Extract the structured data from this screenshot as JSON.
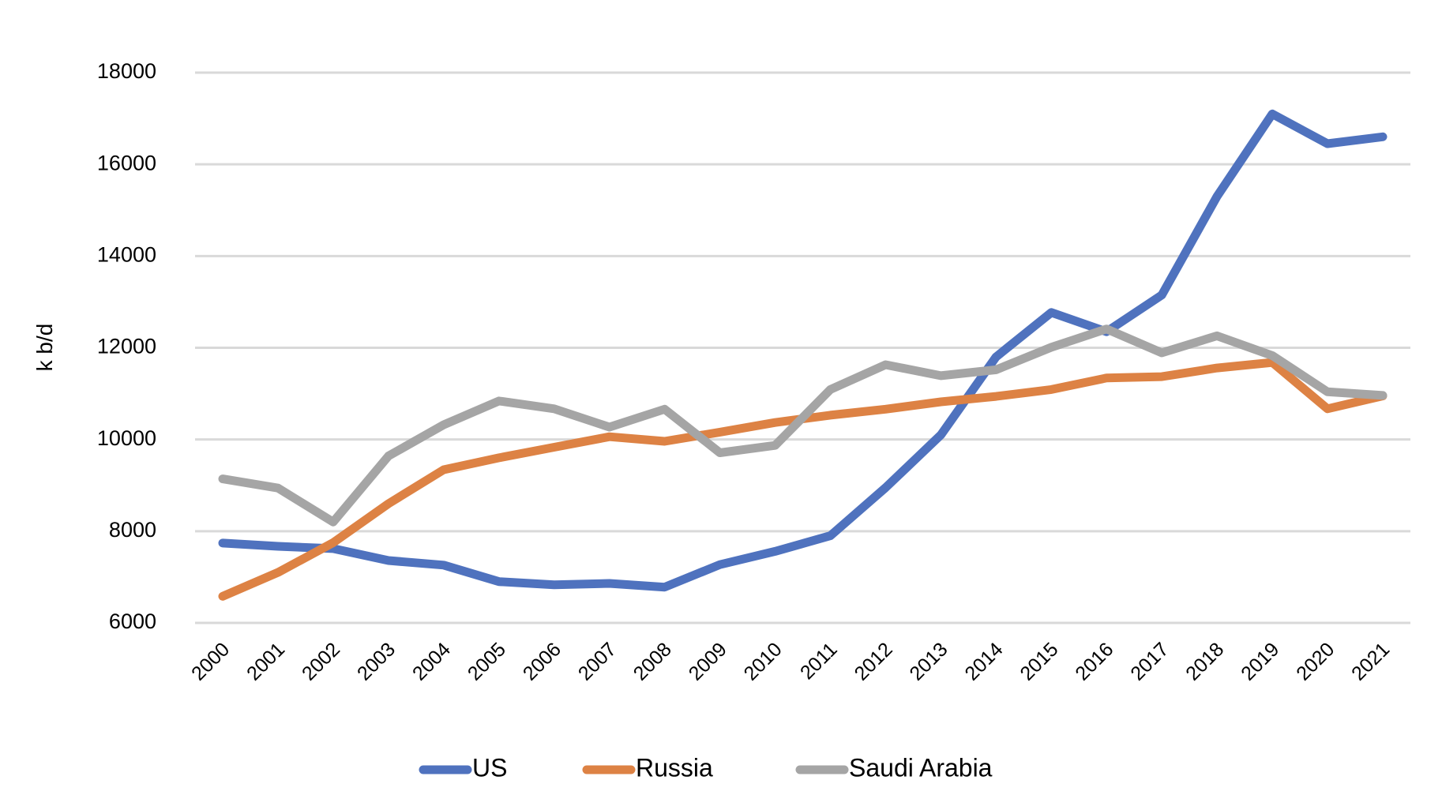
{
  "chart_data": {
    "type": "line",
    "title": "",
    "xlabel": "",
    "ylabel": "k b/d",
    "ylim": [
      6000,
      18000
    ],
    "yticks": [
      6000,
      8000,
      10000,
      12000,
      14000,
      16000,
      18000
    ],
    "grid": true,
    "legend_position": "bottom",
    "categories": [
      "2000",
      "2001",
      "2002",
      "2003",
      "2004",
      "2005",
      "2006",
      "2007",
      "2008",
      "2009",
      "2010",
      "2011",
      "2012",
      "2013",
      "2014",
      "2015",
      "2016",
      "2017",
      "2018",
      "2019",
      "2020",
      "2021"
    ],
    "series": [
      {
        "name": "US",
        "color": "#4f72be",
        "values": [
          7740,
          7670,
          7620,
          7360,
          7260,
          6900,
          6830,
          6860,
          6780,
          7270,
          7560,
          7900,
          8950,
          10100,
          11800,
          12770,
          12350,
          13150,
          15300,
          17100,
          16450,
          16600
        ]
      },
      {
        "name": "Russia",
        "color": "#dd8244",
        "values": [
          6580,
          7100,
          7750,
          8600,
          9340,
          9600,
          9830,
          10060,
          9960,
          10160,
          10370,
          10530,
          10660,
          10820,
          10940,
          11090,
          11340,
          11370,
          11560,
          11680,
          10670,
          10950
        ]
      },
      {
        "name": "Saudi Arabia",
        "color": "#a5a5a5",
        "values": [
          9140,
          8940,
          8200,
          9640,
          10320,
          10840,
          10670,
          10270,
          10660,
          9710,
          9870,
          11090,
          11630,
          11390,
          11520,
          12010,
          12410,
          11890,
          12260,
          11830,
          11040,
          10960
        ]
      }
    ]
  }
}
